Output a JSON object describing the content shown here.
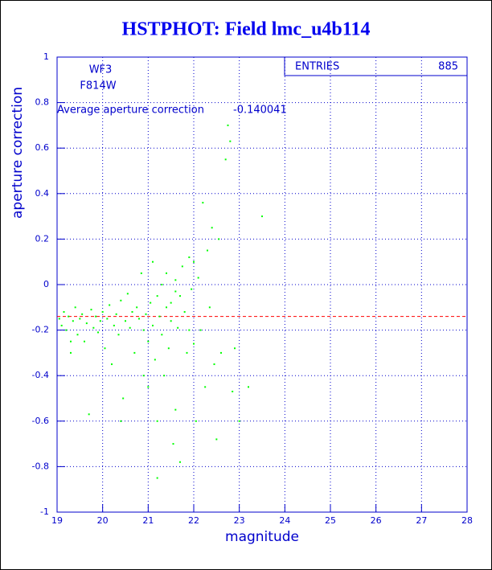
{
  "chart_data": {
    "type": "scatter",
    "title": "HSTPHOT: Field lmc_u4b114",
    "x_label": "magnitude",
    "y_label": "aperture correction",
    "annotations": [
      "WF3",
      "F814W"
    ],
    "stats": {
      "label": "ENTRIES",
      "value": 885
    },
    "average_line": {
      "label": "Average aperture correction",
      "value": -0.140041,
      "color": "#ff0000"
    },
    "xlim": [
      19,
      28
    ],
    "ylim": [
      -1,
      1
    ],
    "xticks": [
      19,
      20,
      21,
      22,
      23,
      24,
      25,
      26,
      27,
      28
    ],
    "yticks": [
      -1,
      -0.8,
      -0.6,
      -0.4,
      -0.2,
      0,
      0.2,
      0.4,
      0.6,
      0.8,
      1
    ],
    "grid": true,
    "series": [
      {
        "color": "#00ff00",
        "x": [
          19.05,
          19.1,
          19.15,
          19.2,
          19.25,
          19.3,
          19.35,
          19.4,
          19.45,
          19.5,
          19.55,
          19.6,
          19.65,
          19.7,
          19.75,
          19.8,
          19.85,
          19.9,
          19.95,
          20.0,
          20.05,
          20.1,
          20.15,
          20.2,
          20.25,
          20.3,
          20.35,
          20.4,
          20.45,
          20.5,
          20.55,
          20.6,
          20.65,
          20.7,
          20.75,
          20.8,
          20.85,
          20.9,
          20.95,
          21.0,
          21.0,
          21.05,
          21.1,
          21.1,
          21.15,
          21.2,
          21.2,
          21.25,
          21.3,
          21.3,
          21.35,
          21.4,
          21.4,
          21.45,
          21.5,
          21.5,
          21.55,
          21.6,
          21.6,
          21.65,
          21.7,
          21.7,
          21.75,
          21.8,
          21.85,
          21.9,
          21.9,
          21.95,
          22.0,
          22.0,
          22.05,
          22.1,
          22.15,
          22.2,
          22.25,
          22.3,
          22.35,
          22.4,
          22.45,
          22.5,
          22.55,
          22.6,
          22.7,
          22.75,
          22.8,
          22.85,
          22.9,
          23.0,
          23.2,
          23.5,
          21.2,
          20.4,
          19.3,
          20.9,
          21.6
        ],
        "values": [
          -0.15,
          -0.18,
          -0.12,
          -0.2,
          -0.14,
          -0.3,
          -0.16,
          -0.1,
          -0.22,
          -0.15,
          -0.13,
          -0.25,
          -0.17,
          -0.57,
          -0.11,
          -0.19,
          -0.14,
          -0.21,
          -0.16,
          -0.12,
          -0.28,
          -0.15,
          -0.09,
          -0.35,
          -0.18,
          -0.13,
          -0.22,
          -0.07,
          -0.5,
          -0.16,
          -0.04,
          -0.19,
          -0.12,
          -0.3,
          -0.1,
          -0.15,
          0.05,
          -0.2,
          -0.13,
          -0.45,
          -0.25,
          -0.08,
          0.1,
          -0.18,
          -0.33,
          -0.05,
          -0.6,
          -0.14,
          0.0,
          -0.22,
          -0.4,
          -0.1,
          0.05,
          -0.28,
          -0.16,
          -0.08,
          -0.7,
          -0.03,
          0.02,
          -0.19,
          -0.05,
          -0.78,
          0.08,
          -0.12,
          -0.3,
          0.12,
          -0.2,
          -0.02,
          0.1,
          -0.26,
          -0.6,
          0.03,
          -0.2,
          0.36,
          -0.45,
          0.15,
          -0.1,
          0.25,
          -0.35,
          -0.68,
          0.2,
          -0.3,
          0.55,
          0.7,
          0.63,
          -0.47,
          -0.28,
          -0.6,
          -0.45,
          0.3,
          -0.85,
          -0.6,
          -0.25,
          -0.4,
          -0.55
        ]
      }
    ]
  }
}
